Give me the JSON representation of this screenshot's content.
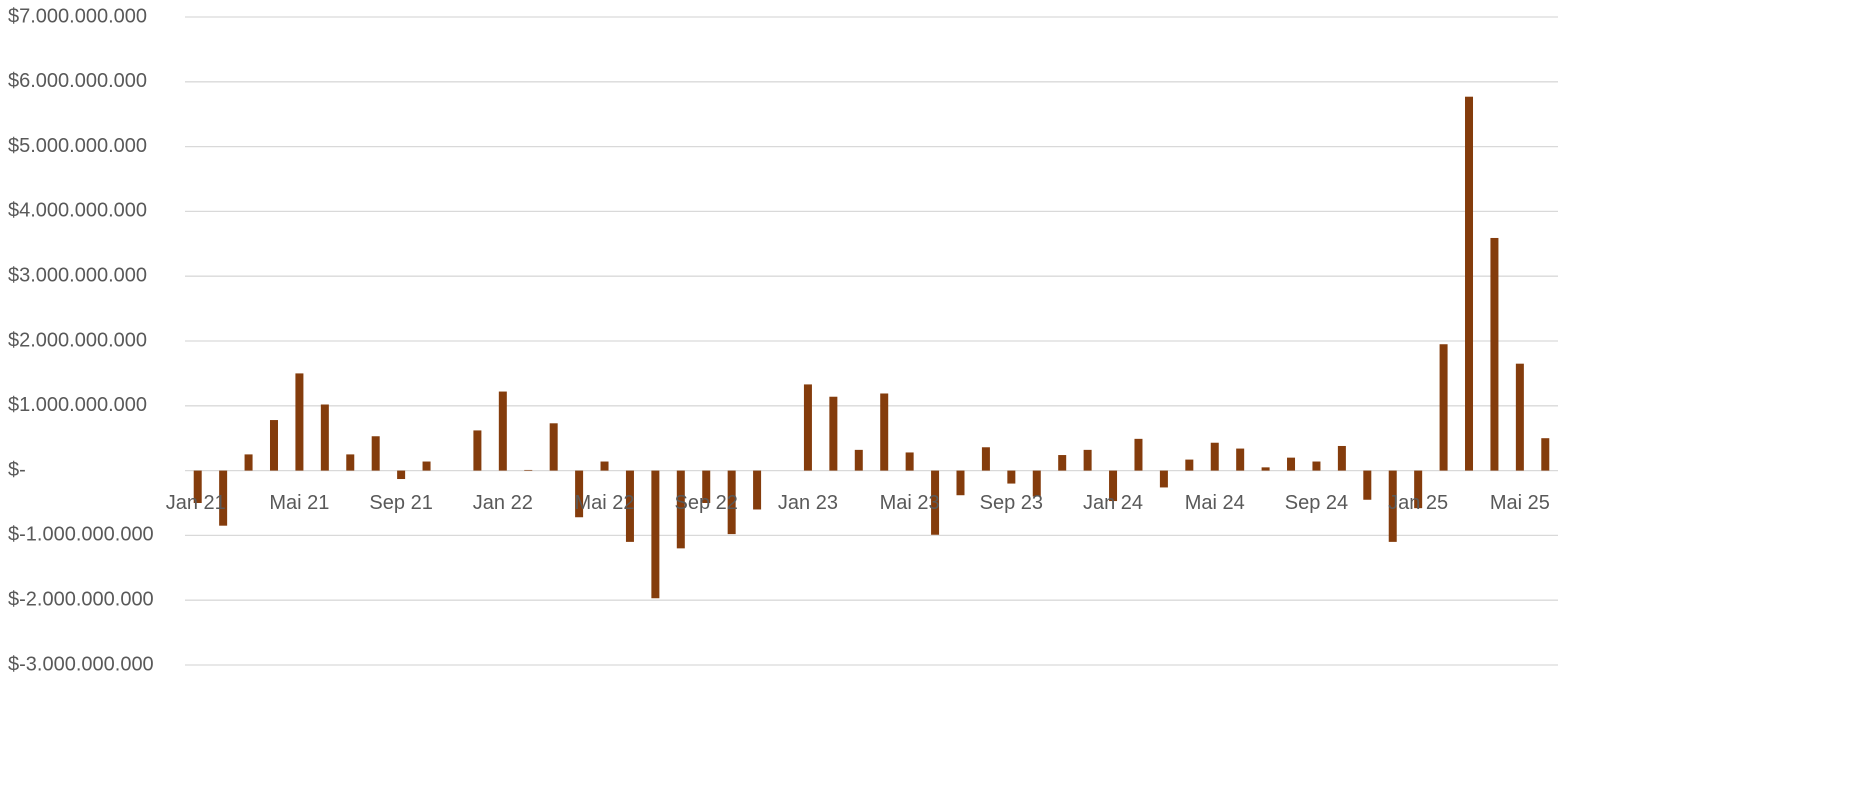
{
  "chart_data": {
    "type": "bar",
    "categories": [
      "Jan 21",
      null,
      null,
      null,
      "Mai 21",
      null,
      null,
      null,
      "Sep 21",
      null,
      null,
      null,
      "Jan 22",
      null,
      null,
      null,
      "Mai 22",
      null,
      null,
      null,
      "Sep 22",
      null,
      null,
      null,
      "Jan 23",
      null,
      null,
      null,
      "Mai 23",
      null,
      null,
      null,
      "Sep 23",
      null,
      null,
      null,
      "Jan 24",
      null,
      null,
      null,
      "Mai 24",
      null,
      null,
      null,
      "Sep 24",
      null,
      null,
      null,
      "Jan 25",
      null,
      null,
      null,
      "Mai 25",
      null
    ],
    "values": [
      -500000000,
      -850000000,
      250000000,
      780000000,
      1500000000,
      1020000000,
      250000000,
      530000000,
      -130000000,
      140000000,
      0,
      620000000,
      1220000000,
      10000000,
      730000000,
      -720000000,
      140000000,
      -1100000000,
      -1970000000,
      -1200000000,
      -500000000,
      -980000000,
      -600000000,
      0,
      1330000000,
      1140000000,
      320000000,
      1190000000,
      280000000,
      -990000000,
      -380000000,
      360000000,
      -200000000,
      -400000000,
      240000000,
      320000000,
      -470000000,
      490000000,
      -260000000,
      170000000,
      430000000,
      340000000,
      50000000,
      200000000,
      140000000,
      380000000,
      -450000000,
      -1100000000,
      -580000000,
      1950000000,
      5770000000,
      3590000000,
      1650000000,
      500000000
    ],
    "color": "#843c0c",
    "ylim": [
      -3000000000,
      7000000000
    ],
    "yticks": [
      {
        "value": -3000000000,
        "label": "$-3.000.000.000"
      },
      {
        "value": -2000000000,
        "label": "$-2.000.000.000"
      },
      {
        "value": -1000000000,
        "label": "$-1.000.000.000"
      },
      {
        "value": 0,
        "label": "$-"
      },
      {
        "value": 1000000000,
        "label": "$1.000.000.000"
      },
      {
        "value": 2000000000,
        "label": "$2.000.000.000"
      },
      {
        "value": 3000000000,
        "label": "$3.000.000.000"
      },
      {
        "value": 4000000000,
        "label": "$4.000.000.000"
      },
      {
        "value": 5000000000,
        "label": "$5.000.000.000"
      },
      {
        "value": 6000000000,
        "label": "$6.000.000.000"
      },
      {
        "value": 7000000000,
        "label": "$7.000.000.000"
      }
    ],
    "grid": true
  }
}
